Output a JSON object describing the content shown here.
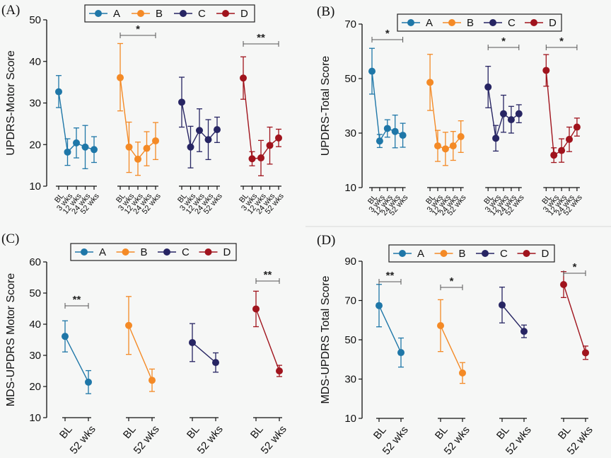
{
  "colors": {
    "A": "#1f77a8",
    "B": "#f48a26",
    "C": "#272563",
    "D": "#a0141d",
    "bracket": "#555555"
  },
  "legend": [
    "A",
    "B",
    "C",
    "D"
  ],
  "chart_data": [
    {
      "id": "A",
      "panel_label": "(A)",
      "type": "line",
      "ylabel": "UPDRS-Motor Score",
      "ylim": [
        10,
        50
      ],
      "yticks": [
        10,
        20,
        30,
        40,
        50
      ],
      "categories": [
        "BL",
        "3 wks",
        "12 wks",
        "24 wks",
        "52 wks"
      ],
      "series": [
        {
          "name": "A",
          "values": [
            32.7,
            18.2,
            20.4,
            19.4,
            18.8
          ],
          "err_low": [
            28.9,
            15.0,
            16.8,
            14.2,
            15.7
          ],
          "err_high": [
            36.6,
            21.4,
            24.0,
            24.6,
            21.9
          ]
        },
        {
          "name": "B",
          "values": [
            36.1,
            19.4,
            16.5,
            19.1,
            20.9
          ],
          "err_low": [
            28.1,
            13.3,
            12.6,
            14.9,
            16.4
          ],
          "err_high": [
            44.3,
            25.4,
            20.6,
            23.1,
            25.3
          ]
        },
        {
          "name": "C",
          "values": [
            30.2,
            19.4,
            23.4,
            21.2,
            23.6
          ],
          "err_low": [
            24.2,
            14.4,
            18.3,
            16.4,
            20.5
          ],
          "err_high": [
            36.2,
            24.4,
            28.6,
            26.0,
            26.6
          ]
        },
        {
          "name": "D",
          "values": [
            36.0,
            16.6,
            16.8,
            19.8,
            21.6
          ],
          "err_low": [
            30.9,
            14.9,
            12.5,
            15.3,
            19.5
          ],
          "err_high": [
            41.1,
            18.3,
            21.0,
            24.2,
            23.7
          ]
        }
      ],
      "significance": [
        {
          "group": "B",
          "label": "*"
        },
        {
          "group": "D",
          "label": "**"
        }
      ]
    },
    {
      "id": "B",
      "panel_label": "(B)",
      "type": "line",
      "ylabel": "UPDRS-Total Score",
      "ylim": [
        10,
        70
      ],
      "yticks": [
        10,
        30,
        50,
        70
      ],
      "categories": [
        "BL",
        "3 wks",
        "12 wks",
        "24 wks",
        "52 wks"
      ],
      "series": [
        {
          "name": "A",
          "values": [
            52.7,
            27.1,
            31.7,
            30.6,
            29.2
          ],
          "err_low": [
            44.3,
            24.7,
            28.5,
            24.6,
            24.8
          ],
          "err_high": [
            61.1,
            29.5,
            34.9,
            36.6,
            33.6
          ]
        },
        {
          "name": "B",
          "values": [
            48.6,
            25.3,
            24.2,
            25.3,
            28.7
          ],
          "err_low": [
            38.3,
            19.6,
            18.1,
            20.0,
            22.9
          ],
          "err_high": [
            58.9,
            31.0,
            30.3,
            30.6,
            34.5
          ]
        },
        {
          "name": "C",
          "values": [
            46.9,
            28.1,
            37.1,
            34.9,
            37.1
          ],
          "err_low": [
            39.3,
            23.4,
            30.3,
            30.0,
            33.8
          ],
          "err_high": [
            54.5,
            32.8,
            43.9,
            39.8,
            40.4
          ]
        },
        {
          "name": "D",
          "values": [
            53.0,
            21.9,
            23.6,
            27.7,
            32.2
          ],
          "err_low": [
            47.2,
            19.2,
            19.3,
            23.2,
            28.9
          ],
          "err_high": [
            58.8,
            24.6,
            27.9,
            32.2,
            35.5
          ]
        }
      ],
      "significance": [
        {
          "group": "A",
          "label": "*"
        },
        {
          "group": "C",
          "label": "*"
        },
        {
          "group": "D",
          "label": "*"
        }
      ]
    },
    {
      "id": "C",
      "panel_label": "(C)",
      "type": "line",
      "ylabel": "MDS-UPDRS Motor Score",
      "ylim": [
        10,
        60
      ],
      "yticks": [
        10,
        20,
        30,
        40,
        50,
        60
      ],
      "categories": [
        "BL",
        "52 wks"
      ],
      "series": [
        {
          "name": "A",
          "values": [
            36.1,
            21.4
          ],
          "err_low": [
            31.1,
            17.7
          ],
          "err_high": [
            41.1,
            25.1
          ]
        },
        {
          "name": "B",
          "values": [
            39.6,
            22.0
          ],
          "err_low": [
            30.3,
            18.4
          ],
          "err_high": [
            48.9,
            25.6
          ]
        },
        {
          "name": "C",
          "values": [
            34.1,
            27.7
          ],
          "err_low": [
            28.0,
            24.6
          ],
          "err_high": [
            40.2,
            30.8
          ]
        },
        {
          "name": "D",
          "values": [
            44.9,
            25.0
          ],
          "err_low": [
            39.2,
            23.2
          ],
          "err_high": [
            50.6,
            26.8
          ]
        }
      ],
      "significance": [
        {
          "group": "A",
          "label": "**"
        },
        {
          "group": "D",
          "label": "**"
        }
      ]
    },
    {
      "id": "D",
      "panel_label": "(D)",
      "type": "line",
      "ylabel": "MDS-UPDRS Total Score",
      "ylim": [
        10,
        90
      ],
      "yticks": [
        10,
        30,
        50,
        70,
        90
      ],
      "categories": [
        "BL",
        "52 wks"
      ],
      "series": [
        {
          "name": "A",
          "values": [
            67.4,
            43.5
          ],
          "err_low": [
            56.6,
            36.1
          ],
          "err_high": [
            78.2,
            50.9
          ]
        },
        {
          "name": "B",
          "values": [
            57.2,
            33.1
          ],
          "err_low": [
            44.0,
            27.8
          ],
          "err_high": [
            70.4,
            38.4
          ]
        },
        {
          "name": "C",
          "values": [
            67.7,
            54.3
          ],
          "err_low": [
            58.6,
            51.1
          ],
          "err_high": [
            76.8,
            57.5
          ]
        },
        {
          "name": "D",
          "values": [
            78.1,
            43.4
          ],
          "err_low": [
            71.5,
            40.0
          ],
          "err_high": [
            84.7,
            46.8
          ]
        }
      ],
      "significance": [
        {
          "group": "A",
          "label": "**"
        },
        {
          "group": "B",
          "label": "*"
        },
        {
          "group": "D",
          "label": "*"
        }
      ]
    }
  ]
}
